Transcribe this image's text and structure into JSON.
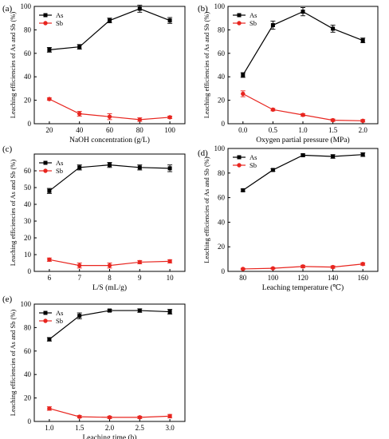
{
  "colors": {
    "As": "#000000",
    "Sb": "#e8251f",
    "axis": "#000000"
  },
  "chart_data": [
    {
      "panel_label": "(a)",
      "type": "line",
      "xlabel": "NaOH concentration (g/L)",
      "ylabel": "Leaching efficiencies of As and Sb (%)",
      "xlim": [
        10,
        110
      ],
      "ylim": [
        0,
        100
      ],
      "xticks": [
        20,
        40,
        60,
        80,
        100
      ],
      "yticks": [
        0,
        20,
        40,
        60,
        80,
        100
      ],
      "legend": "top-left",
      "series": [
        {
          "name": "As",
          "x": [
            20,
            40,
            60,
            80,
            100
          ],
          "values": [
            63,
            65.5,
            88,
            98,
            88
          ],
          "errors": [
            2,
            2,
            2,
            3,
            2.5
          ]
        },
        {
          "name": "Sb",
          "x": [
            20,
            40,
            60,
            80,
            100
          ],
          "values": [
            21,
            8.5,
            6,
            3.5,
            5.5
          ],
          "errors": [
            1,
            2,
            2.5,
            1.5,
            1
          ]
        }
      ]
    },
    {
      "panel_label": "(b)",
      "type": "line",
      "xlabel": "Oxygen partial pressure (MPa)",
      "ylabel": "Leaching efficiencies of As and Sb (%)",
      "xlim": [
        -0.25,
        2.25
      ],
      "ylim": [
        0,
        100
      ],
      "xticks": [
        0.0,
        0.5,
        1.0,
        1.5,
        2.0
      ],
      "yticks": [
        0,
        20,
        40,
        60,
        80,
        100
      ],
      "legend": "top-left",
      "series": [
        {
          "name": "As",
          "x": [
            0.0,
            0.5,
            1.0,
            1.5,
            2.0
          ],
          "values": [
            41.5,
            84,
            95.5,
            81,
            71
          ],
          "errors": [
            2,
            3.5,
            3.5,
            3,
            2
          ]
        },
        {
          "name": "Sb",
          "x": [
            0.0,
            0.5,
            1.0,
            1.5,
            2.0
          ],
          "values": [
            25.5,
            12,
            7.5,
            3,
            2.5
          ],
          "errors": [
            2.5,
            1,
            1,
            1,
            1
          ]
        }
      ]
    },
    {
      "panel_label": "(c)",
      "type": "line",
      "xlabel": "L/S (mL/g)",
      "ylabel": "Leaching efficiencies of As and Sb (%)",
      "xlim": [
        5.5,
        10.5
      ],
      "ylim": [
        0,
        70
      ],
      "xticks": [
        6,
        7,
        8,
        9,
        10
      ],
      "yticks": [
        0,
        10,
        20,
        30,
        40,
        50,
        60
      ],
      "legend": "top-left",
      "series": [
        {
          "name": "As",
          "x": [
            6,
            7,
            8,
            9,
            10
          ],
          "values": [
            48,
            62,
            63.5,
            62,
            61.5
          ],
          "errors": [
            1.5,
            1.5,
            1.5,
            1.5,
            2
          ]
        },
        {
          "name": "Sb",
          "x": [
            6,
            7,
            8,
            9,
            10
          ],
          "values": [
            7,
            3.5,
            3.5,
            5.5,
            6
          ],
          "errors": [
            1,
            1.5,
            1.5,
            1,
            1
          ]
        }
      ]
    },
    {
      "panel_label": "(d)",
      "type": "line",
      "xlabel": "Leaching temperature (℃)",
      "ylabel": "Leaching efficiencies of As and Sb (%)",
      "xlim": [
        70,
        170
      ],
      "ylim": [
        0,
        100
      ],
      "xticks": [
        80,
        100,
        120,
        140,
        160
      ],
      "yticks": [
        0,
        20,
        40,
        60,
        80,
        100
      ],
      "legend": "top-left",
      "series": [
        {
          "name": "As",
          "x": [
            80,
            100,
            120,
            140,
            160
          ],
          "values": [
            66,
            82.5,
            94.5,
            93.5,
            95
          ],
          "errors": [
            1,
            1,
            1,
            1.5,
            1.5
          ]
        },
        {
          "name": "Sb",
          "x": [
            80,
            100,
            120,
            140,
            160
          ],
          "values": [
            2,
            2.5,
            4,
            3.5,
            6
          ],
          "errors": [
            0.5,
            0.5,
            1,
            1,
            1
          ]
        }
      ]
    },
    {
      "panel_label": "(e)",
      "type": "line",
      "xlabel": "Leaching time (h)",
      "ylabel": "Leaching efficiencies of As and Sb (%)",
      "xlim": [
        0.75,
        3.25
      ],
      "ylim": [
        0,
        100
      ],
      "xticks": [
        1.0,
        1.5,
        2.0,
        2.5,
        3.0
      ],
      "yticks": [
        0,
        20,
        40,
        60,
        80,
        100
      ],
      "legend": "top-left",
      "series": [
        {
          "name": "As",
          "x": [
            1.0,
            1.5,
            2.0,
            2.5,
            3.0
          ],
          "values": [
            70,
            90,
            94.5,
            94.5,
            93.5
          ],
          "errors": [
            1.5,
            2.5,
            1,
            1.5,
            2
          ]
        },
        {
          "name": "Sb",
          "x": [
            1.0,
            1.5,
            2.0,
            2.5,
            3.0
          ],
          "values": [
            11,
            4,
            3.5,
            3.5,
            4.5
          ],
          "errors": [
            1.5,
            1,
            1,
            1,
            1.5
          ]
        }
      ]
    }
  ]
}
